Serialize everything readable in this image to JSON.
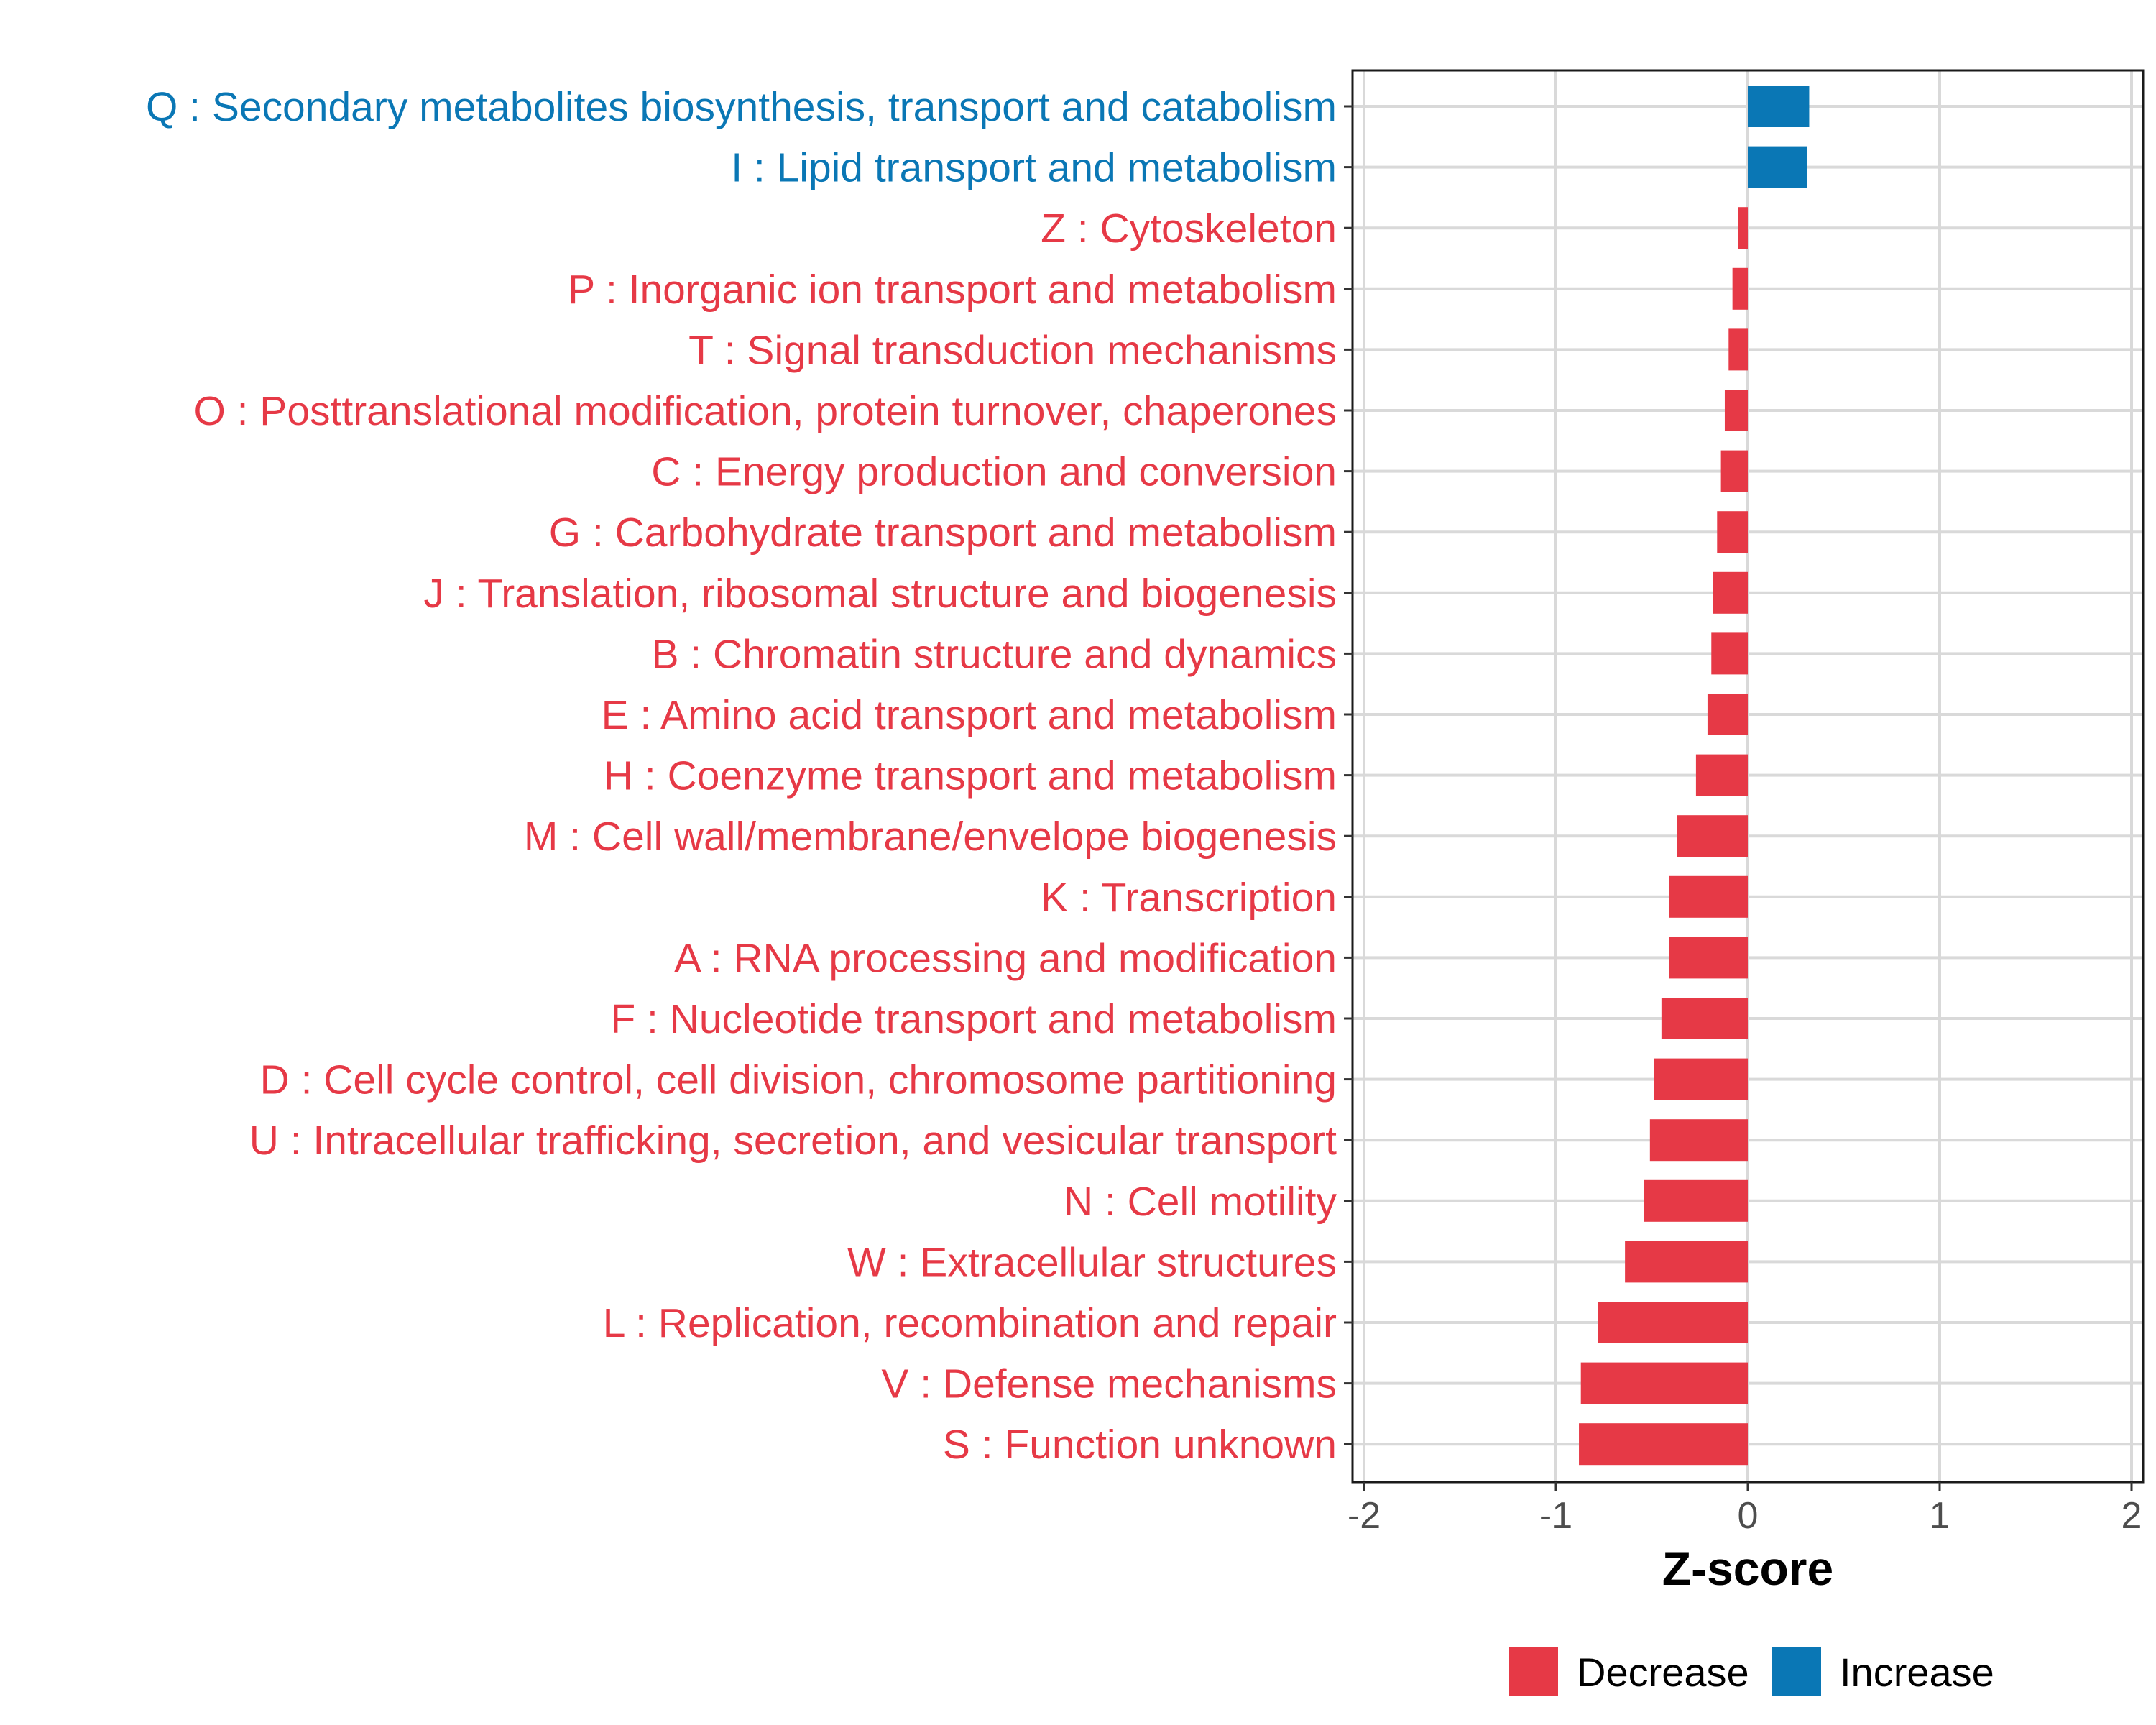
{
  "chart_data": {
    "type": "bar",
    "orientation": "horizontal",
    "xlabel": "Z-score",
    "ylabel": "",
    "xlim": [
      -2,
      2
    ],
    "x_ticks": [
      -2,
      -1,
      0,
      1,
      2
    ],
    "x_tick_labels": [
      "-2",
      "-1",
      "0",
      "1",
      "2"
    ],
    "grid": true,
    "legend_position": "bottom",
    "legend": [
      {
        "name": "Decrease",
        "color": "#e63946"
      },
      {
        "name": "Increase",
        "color": "#0a77b5"
      }
    ],
    "bars": [
      {
        "label": "Q : Secondary metabolites biosynthesis, transport and catabolism",
        "value": 0.32,
        "group": "Increase"
      },
      {
        "label": "I : Lipid transport and metabolism",
        "value": 0.31,
        "group": "Increase"
      },
      {
        "label": "Z : Cytoskeleton",
        "value": -0.05,
        "group": "Decrease"
      },
      {
        "label": "P : Inorganic ion transport and metabolism",
        "value": -0.08,
        "group": "Decrease"
      },
      {
        "label": "T : Signal transduction mechanisms",
        "value": -0.1,
        "group": "Decrease"
      },
      {
        "label": "O : Posttranslational modification, protein turnover, chaperones",
        "value": -0.12,
        "group": "Decrease"
      },
      {
        "label": "C : Energy production and conversion",
        "value": -0.14,
        "group": "Decrease"
      },
      {
        "label": "G : Carbohydrate transport and metabolism",
        "value": -0.16,
        "group": "Decrease"
      },
      {
        "label": "J : Translation, ribosomal structure and biogenesis",
        "value": -0.18,
        "group": "Decrease"
      },
      {
        "label": "B : Chromatin structure and dynamics",
        "value": -0.19,
        "group": "Decrease"
      },
      {
        "label": "E : Amino acid transport and metabolism",
        "value": -0.21,
        "group": "Decrease"
      },
      {
        "label": "H : Coenzyme transport and metabolism",
        "value": -0.27,
        "group": "Decrease"
      },
      {
        "label": "M : Cell wall/membrane/envelope biogenesis",
        "value": -0.37,
        "group": "Decrease"
      },
      {
        "label": "K : Transcription",
        "value": -0.41,
        "group": "Decrease"
      },
      {
        "label": "A : RNA processing and modification",
        "value": -0.41,
        "group": "Decrease"
      },
      {
        "label": "F : Nucleotide transport and metabolism",
        "value": -0.45,
        "group": "Decrease"
      },
      {
        "label": "D : Cell cycle control, cell division, chromosome partitioning",
        "value": -0.49,
        "group": "Decrease"
      },
      {
        "label": "U : Intracellular trafficking, secretion, and vesicular transport",
        "value": -0.51,
        "group": "Decrease"
      },
      {
        "label": "N : Cell motility",
        "value": -0.54,
        "group": "Decrease"
      },
      {
        "label": "W : Extracellular structures",
        "value": -0.64,
        "group": "Decrease"
      },
      {
        "label": "L : Replication, recombination and repair",
        "value": -0.78,
        "group": "Decrease"
      },
      {
        "label": "V : Defense mechanisms",
        "value": -0.87,
        "group": "Decrease"
      },
      {
        "label": "S : Function unknown",
        "value": -0.88,
        "group": "Decrease"
      }
    ]
  }
}
